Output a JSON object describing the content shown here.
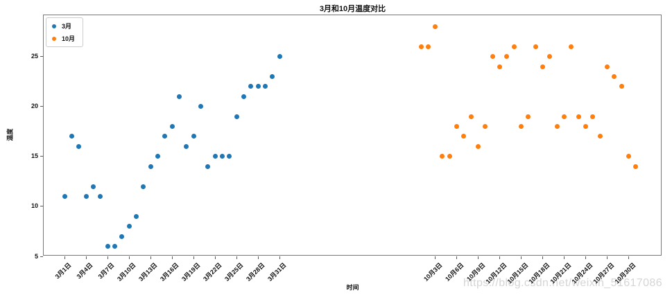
{
  "chart_data": {
    "type": "scatter",
    "title": "3月和10月温度对比",
    "xlabel": "时间",
    "ylabel": "温度",
    "yticks": [
      5,
      10,
      15,
      20,
      25
    ],
    "ylim": [
      4.9,
      29.1
    ],
    "grid": false,
    "legend_position": "upper left",
    "x_unit": "day of month, 1-31 consecutive days per series",
    "series": [
      {
        "name": "3月",
        "color": "#1f77b4",
        "values": [
          11,
          17,
          16,
          11,
          12,
          11,
          6,
          6,
          7,
          8,
          9,
          12,
          14,
          15,
          17,
          18,
          21,
          16,
          17,
          20,
          14,
          15,
          15,
          15,
          19,
          21,
          22,
          22,
          22,
          23,
          25
        ]
      },
      {
        "name": "10月",
        "color": "#ff7f0e",
        "values": [
          26,
          26,
          28,
          15,
          15,
          18,
          17,
          19,
          16,
          18,
          25,
          24,
          25,
          26,
          18,
          19,
          26,
          24,
          25,
          18,
          19,
          26,
          19,
          18,
          19,
          17,
          24,
          23,
          22,
          15,
          14
        ]
      }
    ],
    "x_tick_labels": {
      "march": [
        "3月1日",
        "3月4日",
        "3月7日",
        "3月10日",
        "3月13日",
        "3月16日",
        "3月19日",
        "3月22日",
        "3月25日",
        "3月28日",
        "3月31日"
      ],
      "october": [
        "10月3日",
        "10月6日",
        "10月9日",
        "10月12日",
        "10月15日",
        "10月18日",
        "10月21日",
        "10月24日",
        "10月27日",
        "10月30日"
      ]
    }
  },
  "watermark": {
    "text": "https://blog.csdn.net/weixin_51617086"
  }
}
